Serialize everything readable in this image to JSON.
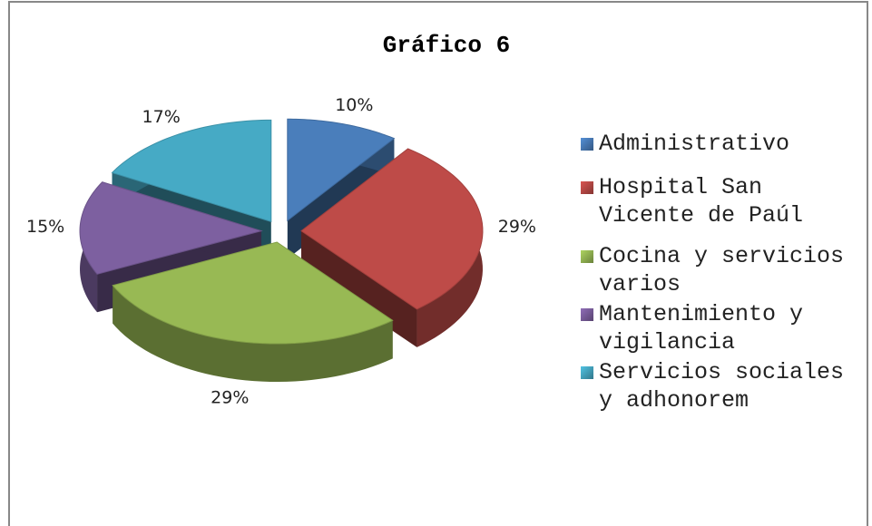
{
  "chart_data": {
    "type": "pie",
    "title": "Gráfico 6",
    "categories": [
      "Administrativo",
      "Hospital San Vicente de Paúl",
      "Cocina y servicios varios",
      "Mantenimiento y vigilancia",
      "Servicios sociales y adhonorem"
    ],
    "values": [
      10,
      29,
      29,
      15,
      17
    ],
    "value_labels": [
      "10%",
      "29%",
      "29%",
      "15%",
      "17%"
    ],
    "colors": [
      "#4a7ebb",
      "#be4b48",
      "#98b954",
      "#7d60a0",
      "#46aac5"
    ],
    "legend": "right"
  }
}
